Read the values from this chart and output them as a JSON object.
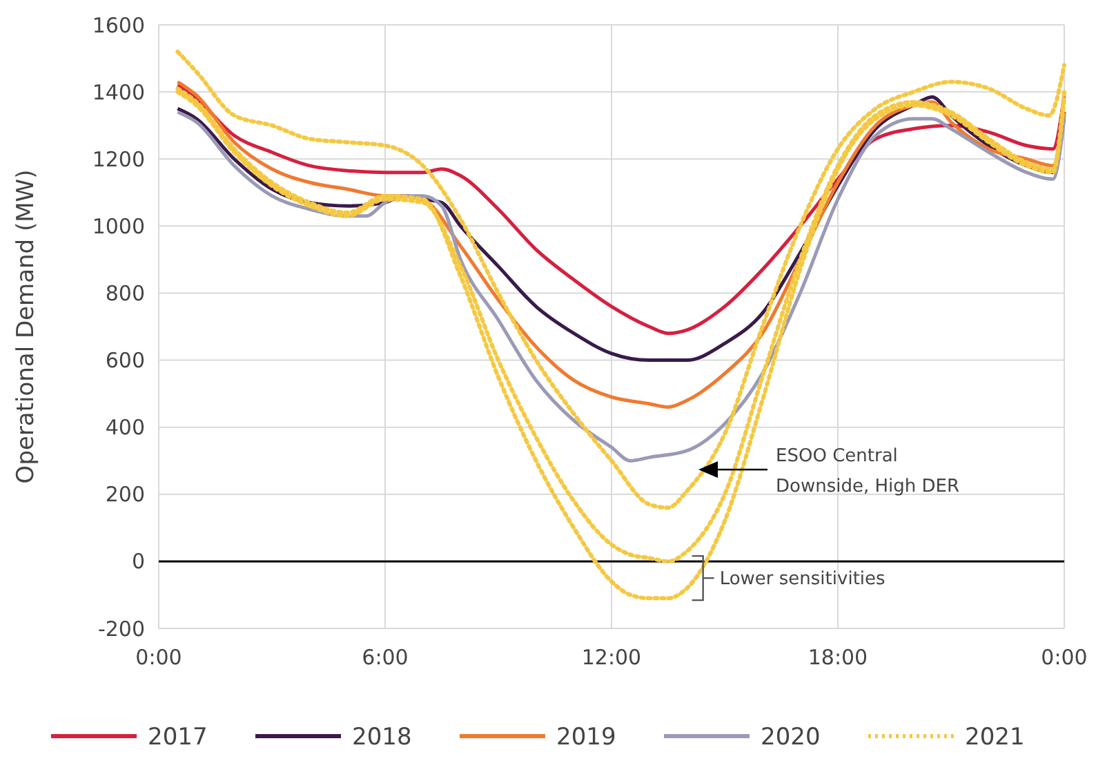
{
  "chart_data": {
    "type": "line",
    "ylabel": "Operational Demand (MW)",
    "xlim": [
      0,
      24
    ],
    "xticks": [
      {
        "value": 0,
        "label": "0:00"
      },
      {
        "value": 6,
        "label": "6:00"
      },
      {
        "value": 12,
        "label": "12:00"
      },
      {
        "value": 18,
        "label": "18:00"
      },
      {
        "value": 24,
        "label": "0:00"
      }
    ],
    "ylim": [
      -200,
      1600
    ],
    "yticks": [
      -200,
      0,
      200,
      400,
      600,
      800,
      1000,
      1200,
      1400,
      1600
    ],
    "grid": true,
    "legend": "bottom",
    "ref_lines": [
      {
        "axis": "y",
        "value": 0,
        "color": "#000000"
      }
    ],
    "annotations": [
      "ESOO Central Downside, High DER",
      {
        "text": "Lower sensitivities",
        "x": 14.5,
        "y": -50
      }
    ],
    "series": [
      {
        "name": "2017",
        "color": "#d62040",
        "line_style": "solid",
        "x": [
          0.5,
          1,
          2,
          3,
          4,
          5,
          6,
          7,
          7.5,
          8,
          9,
          10,
          11,
          12,
          13,
          13.5,
          14,
          15,
          16,
          17,
          18,
          19,
          20,
          21,
          22,
          23,
          23.7,
          24
        ],
        "values": [
          1420,
          1380,
          1270,
          1220,
          1180,
          1165,
          1160,
          1160,
          1170,
          1150,
          1050,
          930,
          840,
          760,
          700,
          680,
          690,
          760,
          870,
          1000,
          1140,
          1260,
          1290,
          1300,
          1280,
          1240,
          1230,
          1390
        ]
      },
      {
        "name": "2018",
        "color": "#3a1a4a",
        "line_style": "solid",
        "x": [
          0.5,
          1,
          2,
          3,
          4,
          5,
          6,
          6.5,
          7,
          7.5,
          8,
          9,
          10,
          11,
          12,
          13,
          14,
          15,
          16,
          17,
          18,
          19,
          20,
          20.5,
          21,
          22,
          23,
          23.7,
          24
        ],
        "values": [
          1350,
          1320,
          1200,
          1110,
          1070,
          1060,
          1070,
          1090,
          1080,
          1070,
          1000,
          880,
          760,
          680,
          620,
          600,
          600,
          650,
          740,
          920,
          1120,
          1290,
          1360,
          1385,
          1330,
          1240,
          1180,
          1160,
          1340
        ]
      },
      {
        "name": "2019",
        "color": "#f07a30",
        "line_style": "solid",
        "x": [
          0.5,
          1,
          2,
          3,
          4,
          5,
          6,
          6.5,
          7,
          8,
          9,
          10,
          11,
          12,
          13,
          13.5,
          14,
          15,
          16,
          17,
          18,
          19,
          20,
          20.5,
          21,
          22,
          23,
          23.7,
          24
        ],
        "values": [
          1430,
          1390,
          1250,
          1170,
          1130,
          1110,
          1090,
          1090,
          1080,
          940,
          780,
          640,
          540,
          490,
          470,
          460,
          480,
          560,
          680,
          900,
          1130,
          1300,
          1360,
          1370,
          1310,
          1230,
          1200,
          1180,
          1340
        ]
      },
      {
        "name": "2020",
        "color": "#9a9ab8",
        "line_style": "solid",
        "x": [
          0.5,
          1,
          2,
          3,
          4,
          5,
          5.5,
          6,
          6.5,
          7,
          7.5,
          8,
          9,
          10,
          11,
          12,
          12.5,
          13,
          14,
          15,
          16,
          17,
          18,
          19,
          20,
          20.5,
          21,
          22,
          23,
          23.7,
          24
        ],
        "values": [
          1340,
          1310,
          1180,
          1090,
          1050,
          1030,
          1030,
          1070,
          1090,
          1090,
          1060,
          900,
          720,
          540,
          420,
          340,
          300,
          310,
          330,
          410,
          560,
          800,
          1080,
          1270,
          1320,
          1320,
          1290,
          1220,
          1160,
          1140,
          1320
        ]
      },
      {
        "name": "2021",
        "color": "#f5c842",
        "line_style": "dotted",
        "x": [
          0.5,
          1,
          2,
          3,
          4,
          5,
          6,
          7,
          8,
          9,
          10,
          11,
          12,
          13,
          13.5,
          14,
          15,
          16,
          17,
          18,
          19,
          20,
          21,
          22,
          23,
          23.6,
          24
        ],
        "values": [
          1520,
          1460,
          1330,
          1300,
          1260,
          1250,
          1240,
          1180,
          1020,
          800,
          600,
          440,
          300,
          170,
          160,
          210,
          380,
          700,
          1000,
          1230,
          1350,
          1400,
          1430,
          1410,
          1350,
          1330,
          1480
        ]
      },
      {
        "color": "#f5c842",
        "line_style": "dotted",
        "x": [
          0.5,
          1,
          2,
          3,
          4,
          5,
          6,
          7,
          8,
          9,
          10,
          11,
          12,
          12.5,
          13,
          13.5,
          14,
          15,
          16,
          17,
          18,
          19,
          20,
          21,
          22,
          23,
          23.7,
          24
        ],
        "values": [
          1400,
          1360,
          1220,
          1120,
          1060,
          1030,
          1080,
          1070,
          880,
          600,
          370,
          180,
          50,
          20,
          10,
          0,
          30,
          200,
          550,
          900,
          1180,
          1330,
          1370,
          1340,
          1260,
          1190,
          1170,
          1400
        ]
      },
      {
        "color": "#f5c842",
        "line_style": "dotted",
        "x": [
          0.5,
          1,
          2,
          3,
          4,
          5,
          6,
          7,
          8,
          9,
          10,
          11,
          12,
          12.5,
          13,
          13.5,
          14,
          15,
          16,
          17,
          18,
          19,
          20,
          21,
          22,
          23,
          23.7,
          24
        ],
        "values": [
          1410,
          1370,
          1230,
          1130,
          1070,
          1040,
          1090,
          1080,
          850,
          550,
          300,
          100,
          -60,
          -100,
          -110,
          -110,
          -80,
          120,
          480,
          870,
          1170,
          1320,
          1360,
          1330,
          1250,
          1180,
          1160,
          1380
        ]
      }
    ]
  }
}
